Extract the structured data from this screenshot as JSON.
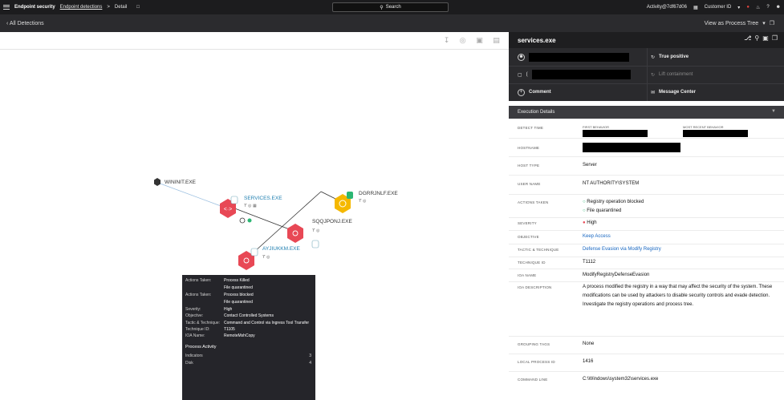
{
  "topbar": {
    "app_name": "Endpoint security",
    "crumb_link": "Endpoint detections",
    "crumb_sep": ">",
    "crumb_current": "Detail",
    "search_label": "Search",
    "account": "Activity@7df67d06",
    "customer": "Customer ID"
  },
  "subbar": {
    "back_label": "All Detections",
    "view_label": "View as Process Tree"
  },
  "tree": {
    "nodes": [
      {
        "label": "WININIT.EXE",
        "color": "#333333"
      },
      {
        "label": "SERVICES.EXE",
        "color": "#e84855"
      },
      {
        "label": "DGRRJNLF.EXE",
        "color": "#f5b800"
      },
      {
        "label": "SQQJPONJ.EXE",
        "color": "#e84855"
      },
      {
        "label": "AYJIUKKM.EXE",
        "color": "#e84855"
      }
    ],
    "badge_count": "0"
  },
  "tooltip": {
    "rows": [
      {
        "k": "Actions Taken:",
        "v": "Process Killed"
      },
      {
        "k": "",
        "v": "File quarantined"
      },
      {
        "k": "Actions Taken:",
        "v": "Process blocked"
      },
      {
        "k": "",
        "v": "File quarantined"
      },
      {
        "k": "Severity:",
        "v": "High"
      },
      {
        "k": "Objective:",
        "v": "Contact Controlled Systems"
      },
      {
        "k": "Tactic & Technique:",
        "v": "Command and Control via Ingress Tool Transfer"
      },
      {
        "k": "Technique ID:",
        "v": "T1105"
      },
      {
        "k": "IOA Name:",
        "v": "RemoteMshCopy"
      }
    ],
    "section": "Process Activity",
    "counts": [
      {
        "k": "Indicators",
        "v": "3"
      },
      {
        "k": "Disk",
        "v": "4"
      }
    ]
  },
  "panel": {
    "title": "services.exe",
    "actions": {
      "true_positive": "True positive",
      "lift_containment": "Lift containment",
      "comment": "Comment",
      "message_center": "Message Center",
      "host_prefix": "("
    },
    "section_title": "Execution Details",
    "details": {
      "detect_time": "DETECT TIME",
      "first_behavior": "FIRST BEHAVIOR",
      "most_recent_behavior": "MOST RECENT BEHAVIOR",
      "hostname": "HOSTNAME",
      "host_type_k": "HOST TYPE",
      "host_type_v": "Server",
      "user_name_k": "USER NAME",
      "user_name_v": "NT AUTHORITY\\SYSTEM",
      "actions_taken_k": "ACTIONS TAKEN",
      "actions_taken_v1": "Registry operation blocked",
      "actions_taken_v2": "File quarantined",
      "severity_k": "SEVERITY",
      "severity_v": "High",
      "objective_k": "OBJECTIVE",
      "objective_v": "Keep Access",
      "tactic_k": "TACTIC & TECHNIQUE",
      "tactic_v1": "Defense Evasion",
      "tactic_via": "via",
      "tactic_v2": "Modify Registry",
      "technique_id_k": "TECHNIQUE ID",
      "technique_id_v": "T1112",
      "ioa_name_k": "IOA NAME",
      "ioa_name_v": "ModifyRegistryDefenseEvasion",
      "ioa_desc_k": "IOA DESCRIPTION",
      "ioa_desc_v": "A process modified the registry in a way that may affect the security of the system. These modifications can be used by attackers to disable security controls and evade detection. Investigate the registry operations and process tree.",
      "grouping_tags_k": "GROUPING TAGS",
      "grouping_tags_v": "None",
      "local_pid_k": "LOCAL PROCESS ID",
      "local_pid_v": "1416",
      "cmd_k": "COMMAND LINE",
      "cmd_v": "C:\\Windows\\system32\\services.exe"
    }
  }
}
